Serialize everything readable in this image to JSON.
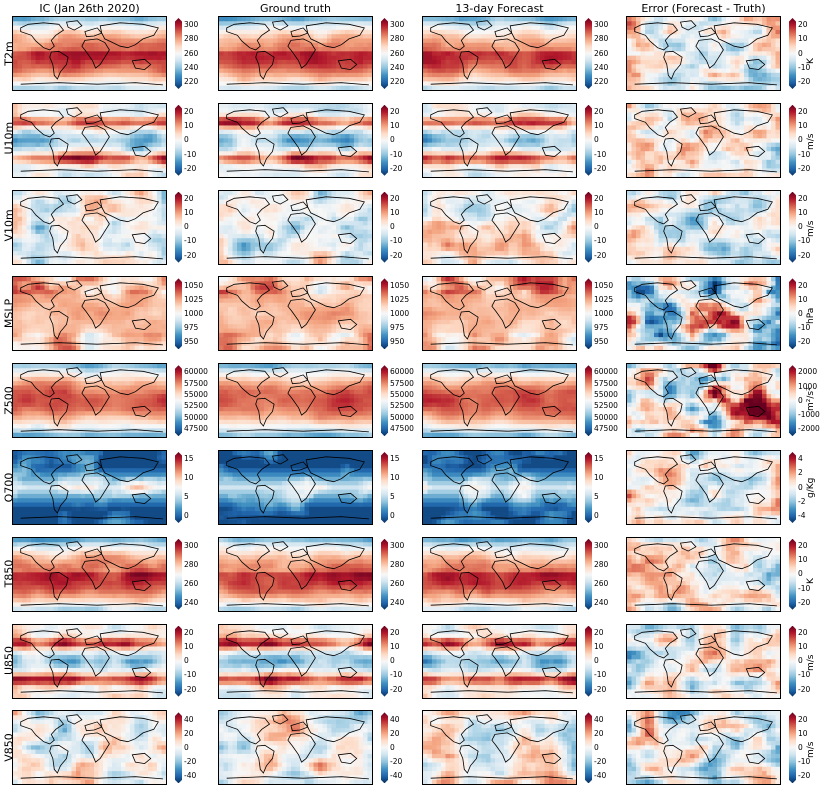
{
  "columns": [
    {
      "title": "IC (Jan 26th 2020)",
      "field": "ic"
    },
    {
      "title": "Ground truth",
      "field": "truth"
    },
    {
      "title": "13-day Forecast",
      "field": "forecast"
    },
    {
      "title": "Error (Forecast - Truth)",
      "field": "error"
    }
  ],
  "rows": [
    {
      "label": "T2m",
      "unit": "K",
      "ticks": [
        "300",
        "280",
        "260",
        "240",
        "220"
      ],
      "error_ticks": [
        "20",
        "10",
        "0",
        "-10",
        "-20"
      ],
      "colormap": "RdBu_r",
      "field_style": "temperature"
    },
    {
      "label": "U10m",
      "unit": "m/s",
      "ticks": [
        "20",
        "10",
        "0",
        "-10",
        "-20"
      ],
      "error_ticks": [
        "20",
        "10",
        "0",
        "-10",
        "-20"
      ],
      "colormap": "RdBu_r",
      "field_style": "zonal-wind"
    },
    {
      "label": "V10m",
      "unit": "m/s",
      "ticks": [
        "20",
        "10",
        "0",
        "-10",
        "-20"
      ],
      "error_ticks": [
        "20",
        "10",
        "0",
        "-10",
        "-20"
      ],
      "colormap": "RdBu_r",
      "field_style": "meridional-wind"
    },
    {
      "label": "MSLP",
      "unit": "hPa",
      "ticks": [
        "1050",
        "1025",
        "1000",
        "975",
        "950"
      ],
      "error_ticks": [
        "20",
        "10",
        "0",
        "-10",
        "-20"
      ],
      "colormap": "RdBu_r",
      "field_style": "pressure"
    },
    {
      "label": "Z500",
      "unit": "m²/s²",
      "ticks": [
        "60000",
        "57500",
        "55000",
        "52500",
        "50000",
        "47500"
      ],
      "error_ticks": [
        "2000",
        "1000",
        "0",
        "-1000",
        "-2000"
      ],
      "colormap": "RdBu_r",
      "field_style": "geopotential"
    },
    {
      "label": "Q700",
      "unit": "g/Kg",
      "ticks": [
        "15",
        "10",
        "5",
        "0"
      ],
      "error_ticks": [
        "4",
        "2",
        "0",
        "-2",
        "-4"
      ],
      "colormap": "RdBu_r",
      "field_style": "humidity"
    },
    {
      "label": "T850",
      "unit": "K",
      "ticks": [
        "300",
        "280",
        "260",
        "240"
      ],
      "error_ticks": [
        "20",
        "10",
        "0",
        "-10",
        "-20"
      ],
      "colormap": "RdBu_r",
      "field_style": "temperature"
    },
    {
      "label": "U850",
      "unit": "m/s",
      "ticks": [
        "20",
        "10",
        "0",
        "-10",
        "-20"
      ],
      "error_ticks": [
        "20",
        "10",
        "0",
        "-10",
        "-20"
      ],
      "colormap": "RdBu_r",
      "field_style": "zonal-wind"
    },
    {
      "label": "V850",
      "unit": "m/s",
      "ticks": [
        "40",
        "20",
        "0",
        "-20",
        "-40"
      ],
      "error_ticks": [
        "20",
        "10",
        "0",
        "-10",
        "-20"
      ],
      "colormap": "RdBu_r",
      "field_style": "meridional-wind"
    }
  ],
  "colors": {
    "red": "#67001f",
    "mid": "#f7f7f7",
    "blue": "#053061"
  }
}
